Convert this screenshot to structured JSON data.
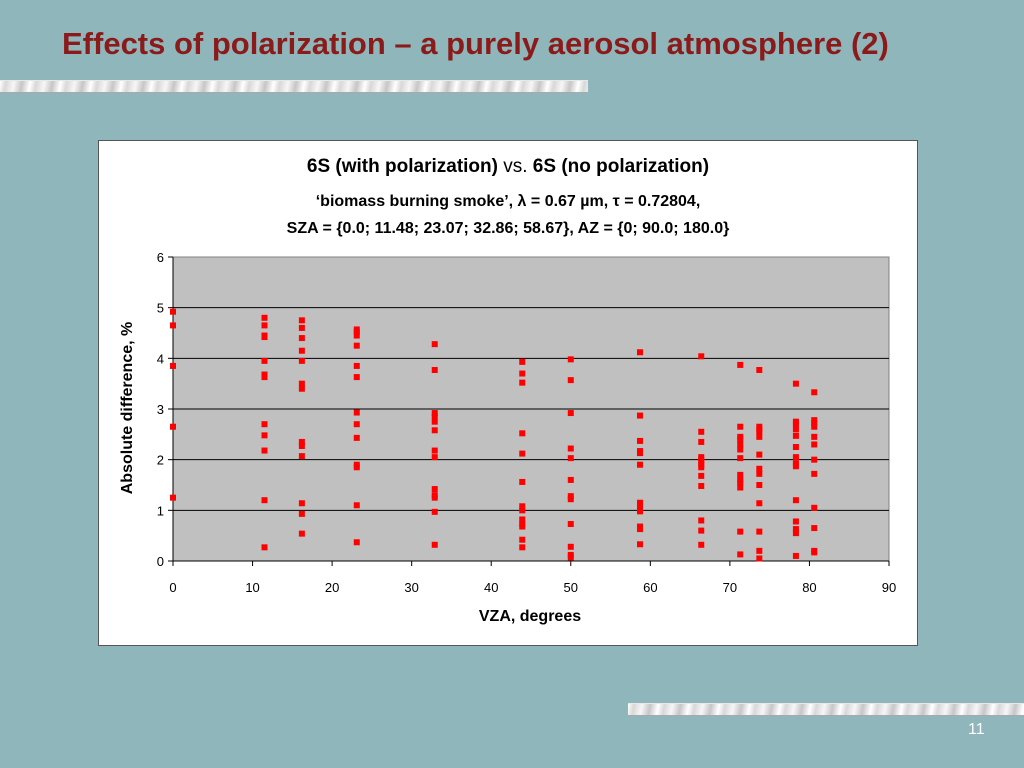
{
  "slide": {
    "title": "Effects of polarization – a purely aerosol atmosphere (2)",
    "page_number": "11"
  },
  "chart_data": {
    "type": "scatter",
    "title_parts": {
      "left": "6S (with polarization) ",
      "vs": "vs.",
      "right": " 6S (no polarization)"
    },
    "subtitle_line1": "‘biomass burning smoke’, λ = 0.67 µm, τ = 0.72804,",
    "subtitle_line2": "SZA = {0.0; 11.48;  23.07; 32.86;  58.67}, AZ = {0; 90.0; 180.0}",
    "xlabel": "VZA, degrees",
    "ylabel": "Absolute difference, %",
    "xlim": [
      0,
      90
    ],
    "ylim": [
      0,
      6
    ],
    "xticks": [
      "0",
      "10",
      "20",
      "30",
      "40",
      "50",
      "60",
      "70",
      "80",
      "90"
    ],
    "yticks": [
      "0",
      "1",
      "2",
      "3",
      "4",
      "5",
      "6"
    ],
    "grid": "horizontal",
    "plot_background": "#c0c0c0",
    "marker_color": "#ff0000",
    "series": [
      {
        "x": 0.0,
        "y": [
          4.92,
          4.65,
          3.85,
          2.65,
          1.25
        ]
      },
      {
        "x": 11.5,
        "y": [
          4.8,
          4.65,
          4.45,
          4.42,
          3.95,
          3.68,
          3.63,
          2.7,
          2.48,
          2.18,
          1.2,
          0.27
        ]
      },
      {
        "x": 16.2,
        "y": [
          4.75,
          4.6,
          4.4,
          4.15,
          3.95,
          3.5,
          3.4,
          2.35,
          2.27,
          2.07,
          1.14,
          0.93,
          0.54
        ]
      },
      {
        "x": 23.1,
        "y": [
          4.57,
          4.52,
          4.45,
          4.25,
          3.85,
          3.63,
          2.93,
          2.7,
          2.43,
          1.9,
          1.85,
          1.1,
          0.37
        ]
      },
      {
        "x": 32.9,
        "y": [
          4.28,
          3.77,
          2.92,
          2.85,
          2.75,
          2.58,
          2.18,
          2.05,
          1.42,
          1.3,
          1.25,
          0.97,
          0.32
        ]
      },
      {
        "x": 43.9,
        "y": [
          3.93,
          3.7,
          3.52,
          2.52,
          2.12,
          1.56,
          1.08,
          1.0,
          0.82,
          0.73,
          0.68,
          0.42,
          0.27
        ]
      },
      {
        "x": 50.0,
        "y": [
          3.98,
          3.57,
          2.92,
          2.22,
          2.03,
          1.6,
          1.28,
          1.22,
          0.73,
          0.28,
          0.12,
          0.07
        ]
      },
      {
        "x": 58.7,
        "y": [
          4.12,
          2.87,
          2.37,
          2.17,
          2.13,
          1.9,
          1.15,
          1.08,
          0.98,
          0.68,
          0.63,
          0.33
        ]
      },
      {
        "x": 66.4,
        "y": [
          4.04,
          2.55,
          2.35,
          2.05,
          2.0,
          1.97,
          1.9,
          1.85,
          1.68,
          1.48,
          0.8,
          0.6,
          0.32
        ]
      },
      {
        "x": 71.3,
        "y": [
          3.87,
          2.65,
          2.45,
          2.4,
          2.3,
          2.2,
          2.03,
          1.7,
          1.6,
          1.55,
          1.45,
          0.58,
          0.13
        ]
      },
      {
        "x": 73.7,
        "y": [
          3.77,
          2.65,
          2.6,
          2.55,
          2.45,
          2.1,
          1.82,
          1.72,
          1.5,
          1.14,
          0.58,
          0.2,
          0.05
        ]
      },
      {
        "x": 78.3,
        "y": [
          3.5,
          2.75,
          2.7,
          2.6,
          2.47,
          2.25,
          2.05,
          1.93,
          1.87,
          1.2,
          0.78,
          0.63,
          0.55,
          0.1
        ]
      },
      {
        "x": 80.6,
        "y": [
          3.33,
          2.78,
          2.72,
          2.65,
          2.45,
          2.3,
          2.0,
          1.72,
          1.05,
          0.65,
          0.2,
          0.17
        ]
      }
    ]
  }
}
